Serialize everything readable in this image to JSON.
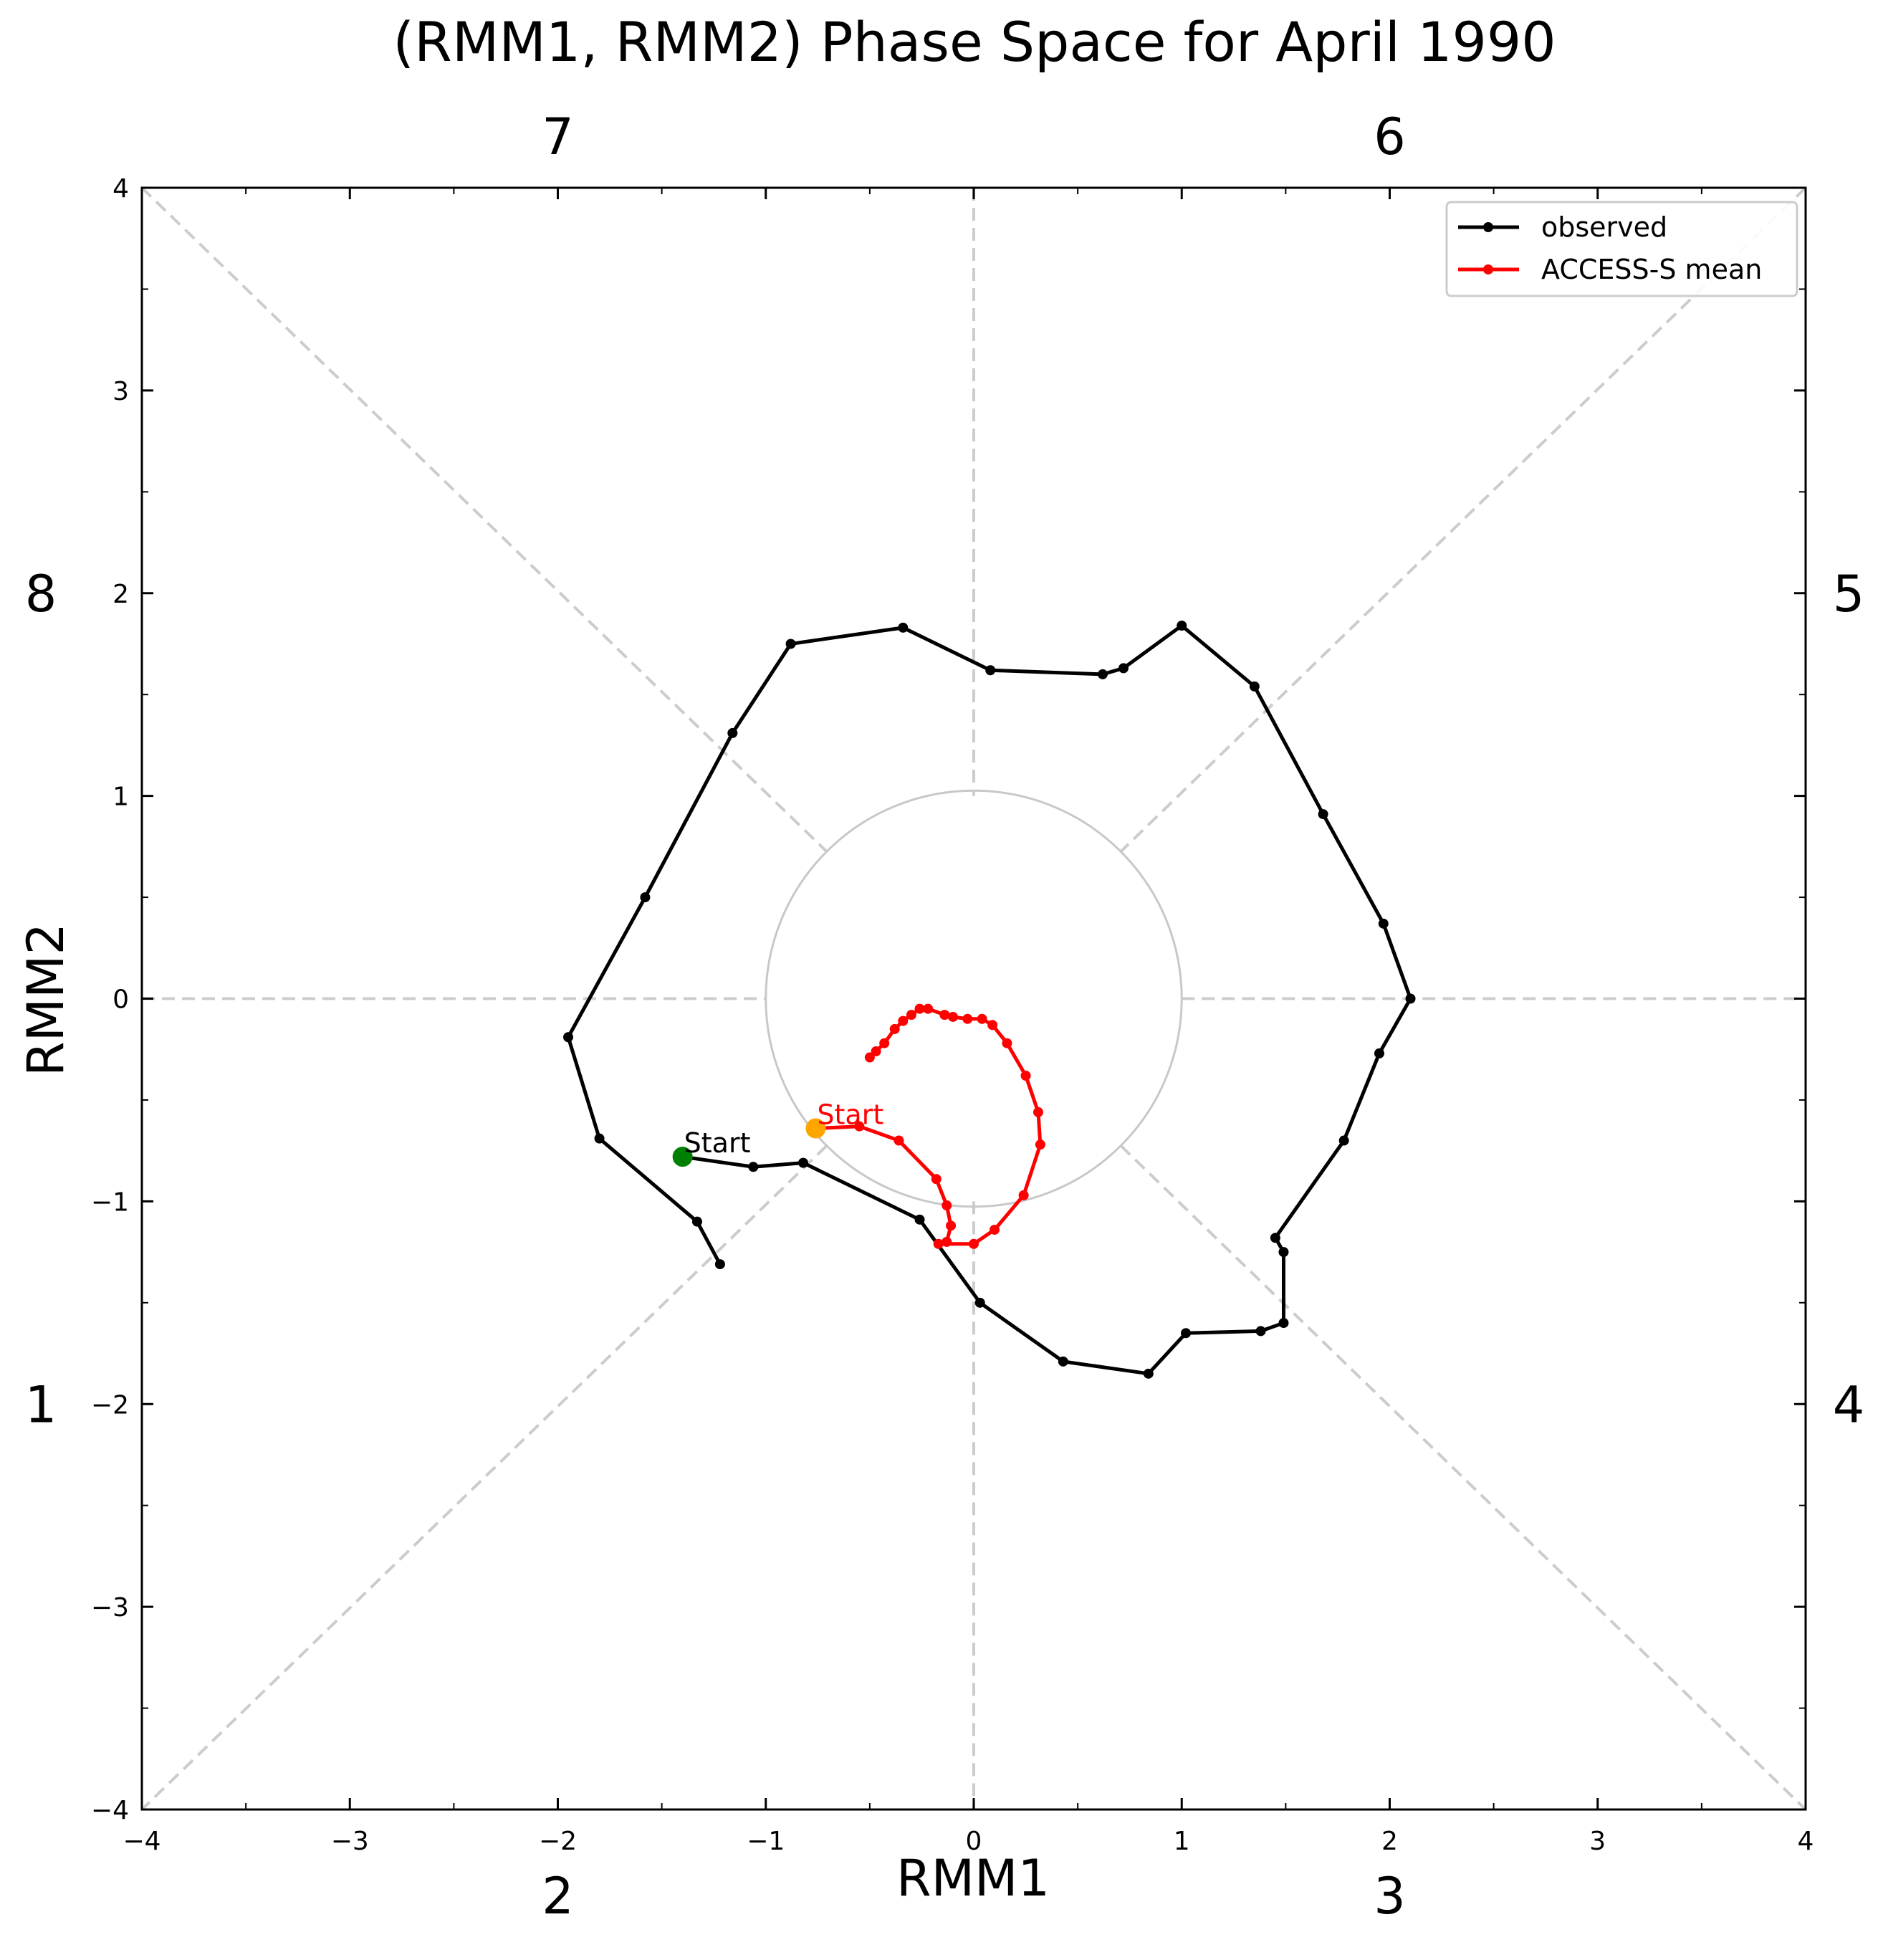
{
  "chart_data": {
    "type": "line",
    "title": "(RMM1, RMM2) Phase Space for April 1990",
    "xlabel": "RMM1",
    "ylabel": "RMM2",
    "xlim": [
      -4,
      4
    ],
    "ylim": [
      -4,
      4
    ],
    "xticks": [
      -4,
      -3,
      -2,
      -1,
      0,
      1,
      2,
      3,
      4
    ],
    "yticks": [
      -4,
      -3,
      -2,
      -1,
      0,
      1,
      2,
      3,
      4
    ],
    "xtick_labels": [
      "−4",
      "−3",
      "−2",
      "−1",
      "0",
      "1",
      "2",
      "3",
      "4"
    ],
    "ytick_labels": [
      "−4",
      "−3",
      "−2",
      "−1",
      "0",
      "1",
      "2",
      "3",
      "4"
    ],
    "grid": false,
    "unit_circle_radius": 1,
    "phase_labels": [
      {
        "label": "1",
        "side": "left-lower"
      },
      {
        "label": "2",
        "side": "bottom-left"
      },
      {
        "label": "3",
        "side": "bottom-right"
      },
      {
        "label": "4",
        "side": "right-lower"
      },
      {
        "label": "5",
        "side": "right-upper"
      },
      {
        "label": "6",
        "side": "top-right"
      },
      {
        "label": "7",
        "side": "top-left"
      },
      {
        "label": "8",
        "side": "left-upper"
      }
    ],
    "legend": {
      "position": "top-right"
    },
    "series": [
      {
        "name": "observed",
        "color": "#000000",
        "start_label": "Start",
        "start_color": "#008000",
        "points": [
          [
            -1.4,
            -0.78
          ],
          [
            -1.06,
            -0.83
          ],
          [
            -0.82,
            -0.81
          ],
          [
            -0.26,
            -1.09
          ],
          [
            0.03,
            -1.5
          ],
          [
            0.43,
            -1.79
          ],
          [
            0.84,
            -1.85
          ],
          [
            1.02,
            -1.65
          ],
          [
            1.38,
            -1.64
          ],
          [
            1.49,
            -1.6
          ],
          [
            1.49,
            -1.25
          ],
          [
            1.45,
            -1.18
          ],
          [
            1.78,
            -0.7
          ],
          [
            1.95,
            -0.27
          ],
          [
            2.1,
            0.0
          ],
          [
            1.97,
            0.37
          ],
          [
            1.68,
            0.91
          ],
          [
            1.35,
            1.54
          ],
          [
            1.0,
            1.84
          ],
          [
            0.72,
            1.63
          ],
          [
            0.62,
            1.6
          ],
          [
            0.08,
            1.62
          ],
          [
            -0.34,
            1.83
          ],
          [
            -0.88,
            1.75
          ],
          [
            -1.16,
            1.31
          ],
          [
            -1.58,
            0.5
          ],
          [
            -1.95,
            -0.19
          ],
          [
            -1.8,
            -0.69
          ],
          [
            -1.33,
            -1.1
          ],
          [
            -1.22,
            -1.31
          ]
        ]
      },
      {
        "name": "ACCESS-S mean",
        "color": "#ff0000",
        "start_label": "Start",
        "start_color": "#ffa500",
        "points": [
          [
            -0.76,
            -0.64
          ],
          [
            -0.55,
            -0.63
          ],
          [
            -0.36,
            -0.7
          ],
          [
            -0.18,
            -0.89
          ],
          [
            -0.13,
            -1.02
          ],
          [
            -0.11,
            -1.12
          ],
          [
            -0.13,
            -1.2
          ],
          [
            -0.17,
            -1.21
          ],
          [
            0.0,
            -1.21
          ],
          [
            0.1,
            -1.14
          ],
          [
            0.24,
            -0.97
          ],
          [
            0.32,
            -0.72
          ],
          [
            0.31,
            -0.56
          ],
          [
            0.25,
            -0.38
          ],
          [
            0.16,
            -0.22
          ],
          [
            0.09,
            -0.13
          ],
          [
            0.04,
            -0.1
          ],
          [
            -0.03,
            -0.1
          ],
          [
            -0.1,
            -0.09
          ],
          [
            -0.14,
            -0.08
          ],
          [
            -0.22,
            -0.05
          ],
          [
            -0.26,
            -0.05
          ],
          [
            -0.3,
            -0.08
          ],
          [
            -0.34,
            -0.11
          ],
          [
            -0.38,
            -0.15
          ],
          [
            -0.43,
            -0.22
          ],
          [
            -0.47,
            -0.26
          ],
          [
            -0.5,
            -0.29
          ]
        ]
      }
    ]
  }
}
